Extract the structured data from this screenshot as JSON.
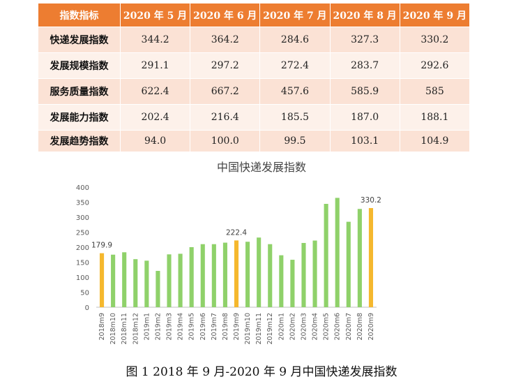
{
  "table": {
    "headers": [
      "指数指标",
      "2020 年 5 月",
      "2020 年 6 月",
      "2020 年 7 月",
      "2020 年 8 月",
      "2020 年 9 月"
    ],
    "rows": [
      {
        "label": "快递发展指数",
        "values": [
          "344.2",
          "364.2",
          "284.6",
          "327.3",
          "330.2"
        ]
      },
      {
        "label": "发展规模指数",
        "values": [
          "291.1",
          "297.2",
          "272.4",
          "283.7",
          "292.6"
        ]
      },
      {
        "label": "服务质量指数",
        "values": [
          "622.4",
          "667.2",
          "457.6",
          "585.9",
          "585"
        ]
      },
      {
        "label": "发展能力指数",
        "values": [
          "202.4",
          "216.4",
          "185.5",
          "187.0",
          "188.1"
        ]
      },
      {
        "label": "发展趋势指数",
        "values": [
          "94.0",
          "100.0",
          "99.5",
          "103.1",
          "104.9"
        ]
      }
    ]
  },
  "caption": "图 1   2018 年 9 月-2020 年 9 月中国快递发展指数",
  "chart_data": {
    "type": "bar",
    "title": "中国快递发展指数",
    "xlabel": "",
    "ylabel": "",
    "ylim": [
      0,
      400
    ],
    "yticks": [
      0,
      50,
      100,
      150,
      200,
      250,
      300,
      350,
      400
    ],
    "grid": false,
    "legend": "none",
    "categories": [
      "2018m9",
      "2018m10",
      "2018m11",
      "2018m12",
      "2019m1",
      "2019m2",
      "2019m3",
      "2019m4",
      "2019m5",
      "2019m6",
      "2019m7",
      "2019m8",
      "2019m9",
      "2019m10",
      "2019m11",
      "2019m12",
      "2020m1",
      "2020m2",
      "2020m3",
      "2020m4",
      "2020m5",
      "2020m6",
      "2020m7",
      "2020m8",
      "2020m9"
    ],
    "values": [
      179.9,
      175,
      183,
      160,
      155,
      121,
      176,
      178,
      200,
      210,
      210,
      215,
      222.4,
      218,
      232,
      210,
      173,
      158,
      214,
      222,
      344.2,
      364.2,
      284.6,
      327.3,
      330.2
    ],
    "highlighted": [
      0,
      12,
      24
    ],
    "data_labels": [
      {
        "index": 0,
        "text": "179.9"
      },
      {
        "index": 12,
        "text": "222.4"
      },
      {
        "index": 24,
        "text": "330.2"
      }
    ],
    "colors": {
      "normal": "#8fd16a",
      "highlight": "#f5b82e",
      "axis": "#bfbfbf",
      "tick_text": "#595959"
    }
  }
}
